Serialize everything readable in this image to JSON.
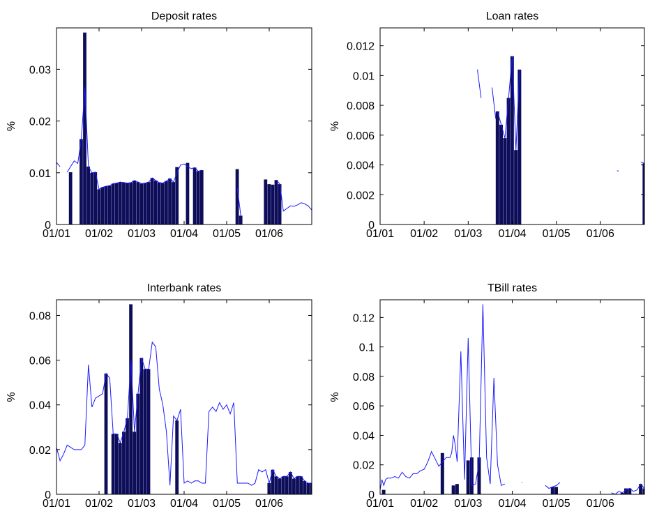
{
  "chart_data": [
    {
      "type": "bar",
      "title": "Deposit rates",
      "ylabel": "%",
      "xlabel": "",
      "ylim": [
        0,
        0.038
      ],
      "yticks": [
        0,
        0.01,
        0.02,
        0.03
      ],
      "ytick_labels": [
        "0",
        "0.01",
        "0.02",
        "0.03"
      ],
      "xlim": [
        0,
        72
      ],
      "xticks": [
        0,
        12,
        24,
        36,
        48,
        60
      ],
      "xtick_labels": [
        "01/01",
        "01/02",
        "01/03",
        "01/04",
        "01/05",
        "01/06"
      ],
      "bars": [
        {
          "x": 4,
          "value": 0.0101
        },
        {
          "x": 7,
          "value": 0.0165
        },
        {
          "x": 8,
          "value": 0.0371
        },
        {
          "x": 9,
          "value": 0.0112
        },
        {
          "x": 10,
          "value": 0.01
        },
        {
          "x": 11,
          "value": 0.0101
        },
        {
          "x": 12,
          "value": 0.0068
        },
        {
          "x": 13,
          "value": 0.0072
        },
        {
          "x": 14,
          "value": 0.0074
        },
        {
          "x": 15,
          "value": 0.0075
        },
        {
          "x": 16,
          "value": 0.0079
        },
        {
          "x": 17,
          "value": 0.008
        },
        {
          "x": 18,
          "value": 0.0082
        },
        {
          "x": 19,
          "value": 0.0081
        },
        {
          "x": 20,
          "value": 0.008
        },
        {
          "x": 21,
          "value": 0.0081
        },
        {
          "x": 22,
          "value": 0.0085
        },
        {
          "x": 23,
          "value": 0.0082
        },
        {
          "x": 24,
          "value": 0.0079
        },
        {
          "x": 25,
          "value": 0.008
        },
        {
          "x": 26,
          "value": 0.0082
        },
        {
          "x": 27,
          "value": 0.009
        },
        {
          "x": 28,
          "value": 0.0085
        },
        {
          "x": 29,
          "value": 0.0081
        },
        {
          "x": 30,
          "value": 0.008
        },
        {
          "x": 31,
          "value": 0.0084
        },
        {
          "x": 32,
          "value": 0.0089
        },
        {
          "x": 33,
          "value": 0.0082
        },
        {
          "x": 34,
          "value": 0.0111
        },
        {
          "x": 37,
          "value": 0.0119
        },
        {
          "x": 39,
          "value": 0.011
        },
        {
          "x": 40,
          "value": 0.0103
        },
        {
          "x": 41,
          "value": 0.0105
        },
        {
          "x": 51,
          "value": 0.0107
        },
        {
          "x": 52,
          "value": 0.0017
        },
        {
          "x": 59,
          "value": 0.0087
        },
        {
          "x": 60,
          "value": 0.0078
        },
        {
          "x": 61,
          "value": 0.0077
        },
        {
          "x": 62,
          "value": 0.0086
        },
        {
          "x": 63,
          "value": 0.0078
        }
      ],
      "line": [
        [
          0,
          0.012
        ],
        [
          1,
          0.0112
        ],
        [
          2,
          null
        ],
        [
          3,
          0.0101
        ],
        [
          4,
          0.0112
        ],
        [
          5,
          0.0123
        ],
        [
          6,
          0.0118
        ],
        [
          7,
          0.0165
        ],
        [
          8,
          0.0265
        ],
        [
          9,
          0.0112
        ],
        [
          10,
          0.01
        ],
        [
          11,
          0.0101
        ],
        [
          12,
          0.0068
        ],
        [
          13,
          0.0072
        ],
        [
          14,
          0.0074
        ],
        [
          15,
          0.0075
        ],
        [
          16,
          0.0079
        ],
        [
          17,
          0.008
        ],
        [
          18,
          0.0082
        ],
        [
          19,
          0.0081
        ],
        [
          20,
          0.008
        ],
        [
          21,
          0.0081
        ],
        [
          22,
          0.0085
        ],
        [
          23,
          0.0082
        ],
        [
          24,
          0.0079
        ],
        [
          25,
          0.008
        ],
        [
          26,
          0.0082
        ],
        [
          27,
          0.009
        ],
        [
          28,
          0.0085
        ],
        [
          29,
          0.0081
        ],
        [
          30,
          0.008
        ],
        [
          31,
          0.0084
        ],
        [
          32,
          0.0089
        ],
        [
          33,
          0.0082
        ],
        [
          34,
          0.01
        ],
        [
          35,
          0.0115
        ],
        [
          36,
          0.0117
        ],
        [
          37,
          0.0112
        ],
        [
          38,
          0.0108
        ],
        [
          39,
          0.011
        ],
        [
          40,
          0.0103
        ],
        [
          41,
          0.0105
        ],
        [
          42,
          null
        ],
        [
          51,
          0.007
        ],
        [
          52,
          0.0017
        ],
        [
          53,
          null
        ],
        [
          62,
          0.0086
        ],
        [
          63,
          0.0078
        ],
        [
          64,
          0.0026
        ],
        [
          65,
          0.0031
        ],
        [
          66,
          0.0036
        ],
        [
          67,
          0.0035
        ],
        [
          68,
          0.0038
        ],
        [
          69,
          0.0042
        ],
        [
          70,
          0.004
        ],
        [
          71,
          0.0036
        ],
        [
          72,
          0.0028
        ]
      ]
    },
    {
      "type": "bar",
      "title": "Loan rates",
      "ylabel": "%",
      "xlabel": "",
      "ylim": [
        0,
        0.0132
      ],
      "yticks": [
        0,
        0.002,
        0.004,
        0.006,
        0.008,
        0.01,
        0.012
      ],
      "ytick_labels": [
        "0",
        "0.002",
        "0.004",
        "0.006",
        "0.008",
        "0.01",
        "0.012"
      ],
      "xlim": [
        0,
        72
      ],
      "xticks": [
        0,
        12,
        24,
        36,
        48,
        60
      ],
      "xtick_labels": [
        "01/01",
        "01/02",
        "01/03",
        "01/04",
        "01/05",
        "01/06"
      ],
      "bars": [
        {
          "x": 32,
          "value": 0.0076
        },
        {
          "x": 33,
          "value": 0.0067
        },
        {
          "x": 34,
          "value": 0.0058
        },
        {
          "x": 35,
          "value": 0.0085
        },
        {
          "x": 36,
          "value": 0.0113
        },
        {
          "x": 37,
          "value": 0.005
        },
        {
          "x": 38,
          "value": 0.0104
        },
        {
          "x": 72,
          "value": 0.0041
        }
      ],
      "line": [
        [
          26.5,
          0.0104
        ],
        [
          27.5,
          0.0085
        ],
        [
          28,
          null
        ],
        [
          30.5,
          0.0092
        ],
        [
          31.5,
          0.0071
        ],
        [
          32,
          null
        ],
        [
          32,
          0.0076
        ],
        [
          33,
          0.0067
        ],
        [
          34,
          0.0058
        ],
        [
          35,
          0.0085
        ],
        [
          36,
          0.0113
        ],
        [
          37,
          0.005
        ],
        [
          38,
          0.0104
        ],
        [
          39,
          null
        ],
        [
          64.5,
          0.0036
        ],
        [
          65,
          0.0036
        ],
        [
          65.1,
          null
        ],
        [
          71,
          0.0042
        ],
        [
          72,
          0.0041
        ]
      ]
    },
    {
      "type": "bar",
      "title": "Interbank rates",
      "ylabel": "%",
      "xlabel": "",
      "ylim": [
        0,
        0.087
      ],
      "yticks": [
        0,
        0.02,
        0.04,
        0.06,
        0.08
      ],
      "ytick_labels": [
        "0",
        "0.02",
        "0.04",
        "0.06",
        "0.08"
      ],
      "xlim": [
        0,
        72
      ],
      "xticks": [
        0,
        12,
        24,
        36,
        48,
        60
      ],
      "xtick_labels": [
        "01/01",
        "01/02",
        "01/03",
        "01/04",
        "01/05",
        "01/06"
      ],
      "bars": [
        {
          "x": 14,
          "value": 0.054
        },
        {
          "x": 16,
          "value": 0.027
        },
        {
          "x": 17,
          "value": 0.027
        },
        {
          "x": 18,
          "value": 0.023
        },
        {
          "x": 19,
          "value": 0.028
        },
        {
          "x": 20,
          "value": 0.034
        },
        {
          "x": 21,
          "value": 0.085
        },
        {
          "x": 22,
          "value": 0.028
        },
        {
          "x": 23,
          "value": 0.045
        },
        {
          "x": 24,
          "value": 0.061
        },
        {
          "x": 25,
          "value": 0.056
        },
        {
          "x": 26,
          "value": 0.056
        },
        {
          "x": 34,
          "value": 0.033
        },
        {
          "x": 60,
          "value": 0.005
        },
        {
          "x": 61,
          "value": 0.011
        },
        {
          "x": 62,
          "value": 0.008
        },
        {
          "x": 63,
          "value": 0.007
        },
        {
          "x": 64,
          "value": 0.008
        },
        {
          "x": 65,
          "value": 0.008
        },
        {
          "x": 66,
          "value": 0.01
        },
        {
          "x": 67,
          "value": 0.007
        },
        {
          "x": 68,
          "value": 0.008
        },
        {
          "x": 69,
          "value": 0.008
        },
        {
          "x": 70,
          "value": 0.006
        },
        {
          "x": 71,
          "value": 0.005
        },
        {
          "x": 72,
          "value": 0.005
        }
      ],
      "line": [
        [
          0,
          0.021
        ],
        [
          1,
          0.015
        ],
        [
          2,
          0.018
        ],
        [
          3,
          0.022
        ],
        [
          4,
          0.021
        ],
        [
          5,
          0.02
        ],
        [
          6,
          0.02
        ],
        [
          7,
          0.02
        ],
        [
          8,
          0.022
        ],
        [
          9,
          0.058
        ],
        [
          10,
          0.039
        ],
        [
          11,
          0.043
        ],
        [
          12,
          0.044
        ],
        [
          13,
          0.045
        ],
        [
          14,
          0.054
        ],
        [
          15,
          0.052
        ],
        [
          16,
          0.027
        ],
        [
          17,
          0.027
        ],
        [
          18,
          0.023
        ],
        [
          19,
          0.028
        ],
        [
          20,
          0.034
        ],
        [
          21,
          0.06
        ],
        [
          22,
          0.028
        ],
        [
          23,
          0.045
        ],
        [
          24,
          0.061
        ],
        [
          25,
          0.056
        ],
        [
          26,
          0.056
        ],
        [
          27,
          0.068
        ],
        [
          28,
          0.066
        ],
        [
          29,
          0.047
        ],
        [
          30,
          0.04
        ],
        [
          31,
          0.028
        ],
        [
          32,
          0.004
        ],
        [
          33,
          0.035
        ],
        [
          34,
          0.033
        ],
        [
          35,
          0.038
        ],
        [
          36,
          0.005
        ],
        [
          37,
          0.006
        ],
        [
          38,
          0.005
        ],
        [
          39,
          0.006
        ],
        [
          40,
          0.006
        ],
        [
          41,
          0.005
        ],
        [
          42,
          0.005
        ],
        [
          43,
          0.037
        ],
        [
          44,
          0.039
        ],
        [
          45,
          0.037
        ],
        [
          46,
          0.041
        ],
        [
          47,
          0.038
        ],
        [
          48,
          0.04
        ],
        [
          49,
          0.036
        ],
        [
          50,
          0.041
        ],
        [
          51,
          0.005
        ],
        [
          52,
          0.005
        ],
        [
          53,
          0.005
        ],
        [
          54,
          0.005
        ],
        [
          55,
          0.004
        ],
        [
          56,
          0.005
        ],
        [
          57,
          0.011
        ],
        [
          58,
          0.01
        ],
        [
          59,
          0.011
        ],
        [
          60,
          0.005
        ],
        [
          61,
          0.011
        ],
        [
          62,
          0.008
        ],
        [
          63,
          0.007
        ],
        [
          64,
          0.008
        ],
        [
          65,
          0.008
        ],
        [
          66,
          0.01
        ],
        [
          67,
          0.007
        ],
        [
          68,
          0.008
        ],
        [
          69,
          0.008
        ],
        [
          70,
          0.006
        ],
        [
          71,
          0.005
        ],
        [
          72,
          0.005
        ]
      ]
    },
    {
      "type": "bar",
      "title": "TBill rates",
      "ylabel": "%",
      "xlabel": "",
      "ylim": [
        0,
        0.132
      ],
      "yticks": [
        0,
        0.02,
        0.04,
        0.06,
        0.08,
        0.1,
        0.12
      ],
      "ytick_labels": [
        "0",
        "0.02",
        "0.04",
        "0.06",
        "0.08",
        "0.1",
        "0.12"
      ],
      "xlim": [
        0,
        72
      ],
      "xticks": [
        0,
        12,
        24,
        36,
        48,
        60
      ],
      "xtick_labels": [
        "01/01",
        "01/02",
        "01/03",
        "01/04",
        "01/05",
        "01/06"
      ],
      "bars": [
        {
          "x": 1,
          "value": 0.003
        },
        {
          "x": 17,
          "value": 0.028
        },
        {
          "x": 20,
          "value": 0.006
        },
        {
          "x": 21,
          "value": 0.007
        },
        {
          "x": 24,
          "value": 0.023
        },
        {
          "x": 25,
          "value": 0.025
        },
        {
          "x": 27,
          "value": 0.025
        },
        {
          "x": 47,
          "value": 0.005
        },
        {
          "x": 48,
          "value": 0.005
        },
        {
          "x": 66,
          "value": 0.001
        },
        {
          "x": 67,
          "value": 0.004
        },
        {
          "x": 68,
          "value": 0.004
        },
        {
          "x": 71,
          "value": 0.007
        },
        {
          "x": 72,
          "value": 0.004
        }
      ],
      "line": [
        [
          0,
          0.003
        ],
        [
          0.5,
          0.01
        ],
        [
          1,
          0.006
        ],
        [
          1.5,
          0.01
        ],
        [
          2,
          0.011
        ],
        [
          3,
          0.011
        ],
        [
          4,
          0.012
        ],
        [
          5,
          0.011
        ],
        [
          6,
          0.015
        ],
        [
          7,
          0.012
        ],
        [
          8,
          0.011
        ],
        [
          9,
          0.014
        ],
        [
          10,
          0.014
        ],
        [
          11,
          0.016
        ],
        [
          12,
          0.017
        ],
        [
          13,
          0.022
        ],
        [
          14,
          0.029
        ],
        [
          15,
          0.024
        ],
        [
          16,
          0.019
        ],
        [
          17,
          0.022
        ],
        [
          18,
          0.025
        ],
        [
          19,
          0.025
        ],
        [
          19.5,
          0.028
        ],
        [
          20,
          0.04
        ],
        [
          20.5,
          0.033
        ],
        [
          21,
          0.022
        ],
        [
          22,
          0.097
        ],
        [
          23,
          0.01
        ],
        [
          24,
          0.106
        ],
        [
          25,
          0.006
        ],
        [
          26,
          0.007
        ],
        [
          27,
          0.022
        ],
        [
          28,
          0.129
        ],
        [
          29,
          0.025
        ],
        [
          30,
          0.007
        ],
        [
          31,
          0.079
        ],
        [
          32,
          0.02
        ],
        [
          33,
          0.006
        ],
        [
          34,
          0.007
        ],
        [
          35,
          null
        ],
        [
          38.5,
          0.008
        ],
        [
          38.7,
          0.008
        ],
        [
          38.8,
          null
        ],
        [
          45,
          0.006
        ],
        [
          46,
          0.004
        ],
        [
          47,
          0.005
        ],
        [
          48,
          0.006
        ],
        [
          49,
          0.008
        ],
        [
          50,
          null
        ],
        [
          63,
          0.001
        ],
        [
          64,
          0.0
        ],
        [
          65,
          0.002
        ],
        [
          66,
          0.001
        ],
        [
          67,
          0.003
        ],
        [
          68,
          0.004
        ],
        [
          69,
          0.002
        ],
        [
          70,
          0.003
        ],
        [
          71,
          0.007
        ],
        [
          72,
          0.004
        ]
      ]
    }
  ]
}
